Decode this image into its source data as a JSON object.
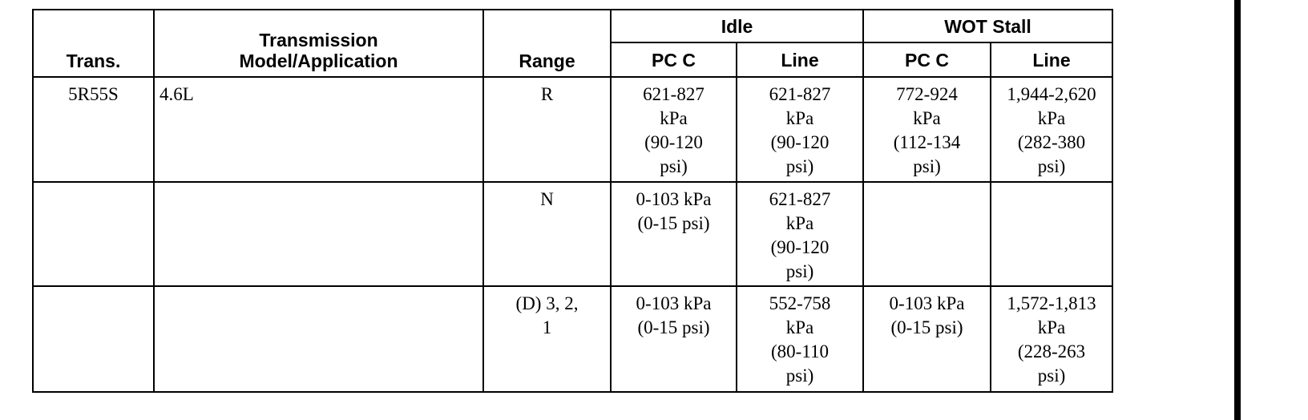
{
  "table": {
    "header": {
      "groups": [
        "Idle",
        "WOT Stall"
      ],
      "columns": [
        "Trans.",
        "Transmission\nModel/Application",
        "Range",
        "PC C",
        "Line",
        "PC C",
        "Line"
      ]
    },
    "rows": [
      [
        "5R55S",
        "4.6L",
        "R",
        "621-827\nkPa\n(90-120\npsi)",
        "621-827\nkPa\n(90-120\npsi)",
        "772-924\nkPa\n(112-134\npsi)",
        "1,944-2,620\nkPa\n(282-380\npsi)"
      ],
      [
        "",
        "",
        "N",
        "0-103 kPa\n(0-15 psi)",
        "621-827\nkPa\n(90-120\npsi)",
        "",
        ""
      ],
      [
        "",
        "",
        "(D)  3, 2,\n1",
        "0-103 kPa\n(0-15 psi)",
        "552-758\nkPa\n(80-110\npsi)",
        "0-103 kPa\n(0-15 psi)",
        "1,572-1,813\nkPa\n(228-263\npsi)"
      ]
    ]
  }
}
